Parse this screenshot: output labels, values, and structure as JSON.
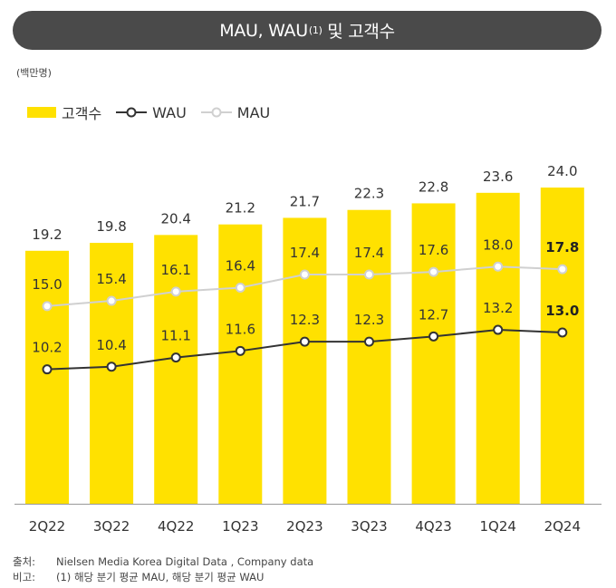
{
  "header": {
    "title_main": "MAU, WAU",
    "title_sup": "(1)",
    "title_tail": " 및 고객수",
    "unit": "(백만명)"
  },
  "legend": {
    "customers": "고객수",
    "wau": "WAU",
    "mau": "MAU"
  },
  "colors": {
    "bar": "#FFE100",
    "wau_line": "#333333",
    "mau_line": "#D0D0D0",
    "title_bg": "#4A4A4A"
  },
  "chart_data": {
    "type": "bar",
    "categories": [
      "2Q22",
      "3Q22",
      "4Q22",
      "1Q23",
      "2Q23",
      "3Q23",
      "4Q23",
      "1Q24",
      "2Q24"
    ],
    "series": [
      {
        "name": "고객수",
        "type": "bar",
        "values": [
          19.2,
          19.8,
          20.4,
          21.2,
          21.7,
          22.3,
          22.8,
          23.6,
          24.0
        ]
      },
      {
        "name": "MAU",
        "type": "line",
        "values": [
          15.0,
          15.4,
          16.1,
          16.4,
          17.4,
          17.4,
          17.6,
          18.0,
          17.8
        ]
      },
      {
        "name": "WAU",
        "type": "line",
        "values": [
          10.2,
          10.4,
          11.1,
          11.6,
          12.3,
          12.3,
          12.7,
          13.2,
          13.0
        ]
      }
    ],
    "mau_labels": [
      "15.0",
      "15.4",
      "16.1",
      "16.4",
      "17.4",
      "17.4",
      "17.6",
      "18.0",
      "17.8"
    ],
    "wau_labels": [
      "10.2",
      "10.4",
      "11.1",
      "11.6",
      "12.3",
      "12.3",
      "12.7",
      "13.2",
      "13.0"
    ],
    "bar_labels": [
      "19.2",
      "19.8",
      "20.4",
      "21.2",
      "21.7",
      "22.3",
      "22.8",
      "23.6",
      "24.0"
    ],
    "emphasized_last": true,
    "grid": false,
    "legend_position": "top-left"
  },
  "footer": {
    "source_label": "출처:",
    "source_text": "Nielsen Media Korea Digital Data , Company data",
    "note_label": "비고:",
    "note_text": "(1) 해당 분기 평균 MAU, 해당 분기 평균 WAU"
  }
}
